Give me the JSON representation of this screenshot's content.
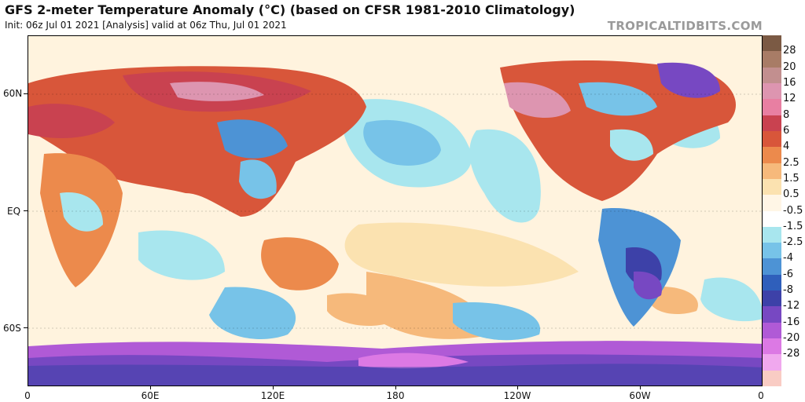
{
  "header": {
    "title": "GFS 2-meter Temperature Anomaly (°C) (based on CFSR 1981-2010 Climatology)",
    "subtitle": "Init: 06z Jul 01 2021   [Analysis]   valid at 06z Thu, Jul 01 2021",
    "brand": "TROPICALTIDBITS.COM"
  },
  "map": {
    "lat_labels": [
      "60N",
      "EQ",
      "60S"
    ],
    "lon_labels": [
      "0",
      "60E",
      "120E",
      "180",
      "120W",
      "60W",
      "0"
    ]
  },
  "colorbar": {
    "labels": [
      "28",
      "20",
      "16",
      "12",
      "8",
      "6",
      "4",
      "2.5",
      "1.5",
      "0.5",
      "-0.5",
      "-1.5",
      "-2.5",
      "-4",
      "-6",
      "-8",
      "-12",
      "-16",
      "-20",
      "-28"
    ],
    "colors": [
      "#7b5a44",
      "#a87c66",
      "#c28f8f",
      "#dd95b0",
      "#e87fa2",
      "#c94250",
      "#d8563a",
      "#ec8a4c",
      "#f6b97b",
      "#fbe2b0",
      "#fff6e6",
      "#ffffff",
      "#a8e6ee",
      "#77c3e8",
      "#4d93d5",
      "#2f5fbb",
      "#3d41a8",
      "#7748c2",
      "#b05ad6",
      "#dc79e4",
      "#f0a8ee",
      "#f9ccc4"
    ]
  },
  "colors": {
    "ocean_neutral": "#fff6e6",
    "warm": "#d8563a",
    "cold": "#3d41a8"
  }
}
